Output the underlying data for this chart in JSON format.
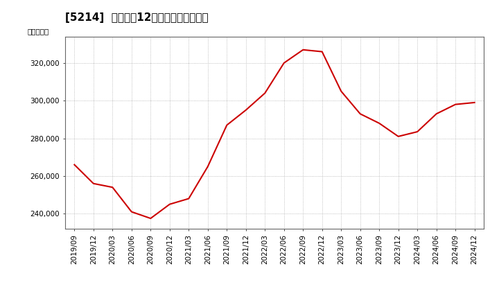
{
  "title": "[5214]  売上高の12か月移動合計の推移",
  "ylabel": "（百万円）",
  "line_color": "#cc0000",
  "background_color": "#ffffff",
  "plot_bg_color": "#ffffff",
  "grid_color": "#999999",
  "x_labels": [
    "2019/09",
    "2019/12",
    "2020/03",
    "2020/06",
    "2020/09",
    "2020/12",
    "2021/03",
    "2021/06",
    "2021/09",
    "2021/12",
    "2022/03",
    "2022/06",
    "2022/09",
    "2022/12",
    "2023/03",
    "2023/06",
    "2023/09",
    "2023/12",
    "2024/03",
    "2024/06",
    "2024/09",
    "2024/12"
  ],
  "values": [
    266000,
    256000,
    254000,
    241000,
    237500,
    245000,
    248000,
    265000,
    287000,
    295000,
    304000,
    320000,
    327000,
    326000,
    305000,
    293000,
    288000,
    281000,
    283500,
    293000,
    298000,
    299000
  ],
  "ylim": [
    232000,
    334000
  ],
  "yticks": [
    240000,
    260000,
    280000,
    300000,
    320000
  ],
  "title_fontsize": 11,
  "axis_fontsize": 7.5,
  "ylabel_fontsize": 7.5
}
